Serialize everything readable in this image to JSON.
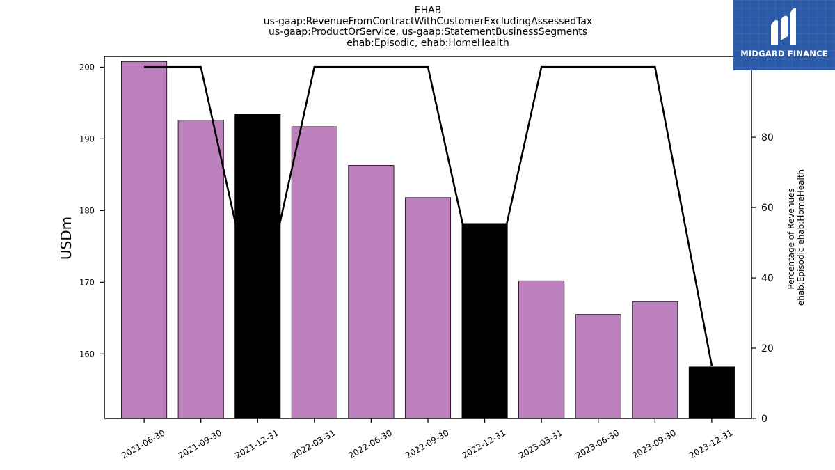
{
  "title_lines": [
    "EHAB",
    "us-gaap:RevenueFromContractWithCustomerExcludingAssessedTax",
    "us-gaap:ProductOrService, us-gaap:StatementBusinessSegments",
    "ehab:Episodic, ehab:HomeHealth"
  ],
  "logo": {
    "text": "MIDGARD FINANCE",
    "background": "#2b5aa8"
  },
  "chart_data": {
    "type": "bar",
    "categories": [
      "2021-06-30",
      "2021-09-30",
      "2021-12-31",
      "2022-03-31",
      "2022-06-30",
      "2022-09-30",
      "2022-12-31",
      "2023-03-31",
      "2023-06-30",
      "2023-09-30",
      "2023-12-31"
    ],
    "series": [
      {
        "axis": "left",
        "type": "bar",
        "values": [
          200.8,
          192.6,
          193.4,
          191.7,
          186.3,
          181.8,
          178.2,
          170.2,
          165.5,
          167.3,
          158.2
        ],
        "colors": [
          "#bc80bd",
          "#bc80bd",
          "#000000",
          "#bc80bd",
          "#bc80bd",
          "#bc80bd",
          "#000000",
          "#bc80bd",
          "#bc80bd",
          "#bc80bd",
          "#000000"
        ]
      },
      {
        "axis": "right",
        "type": "line",
        "color": "#000000",
        "values": [
          100,
          100,
          27,
          100,
          100,
          100,
          27,
          100,
          100,
          100,
          15
        ]
      }
    ],
    "ylabel": "USDm",
    "y2label_lines": [
      "Percentage of Revenues",
      "ehab:Episodic ehab:HomeHealth"
    ],
    "ylim": [
      151,
      201.5
    ],
    "y2lim": [
      0,
      103
    ],
    "yticks": [
      160,
      170,
      180,
      190,
      200
    ],
    "y2ticks": [
      0,
      20,
      40,
      60,
      80,
      100
    ],
    "grid": false
  }
}
